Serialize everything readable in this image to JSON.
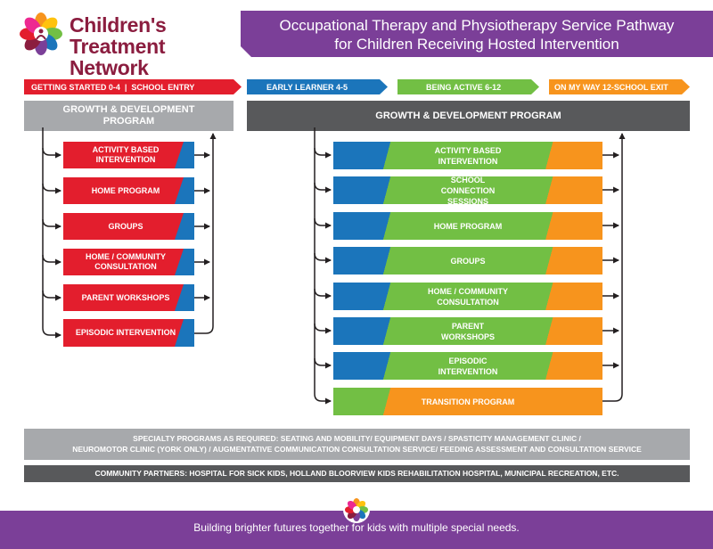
{
  "logo": {
    "line1": "Children's",
    "line2": "Treatment Network"
  },
  "title": {
    "line1": "Occupational Therapy and Physiotherapy Service Pathway",
    "line2": "for Children Receiving Hosted Intervention"
  },
  "age_tabs": {
    "first": "GETTING STARTED 0-4  |  SCHOOL ENTRY",
    "early": "EARLY LEARNER 4-5",
    "active": "BEING ACTIVE 6-12",
    "onmyway": "ON MY WAY 12-SCHOOL EXIT"
  },
  "left_header": "GROWTH & DEVELOPMENT PROGRAM",
  "right_header": "GROWTH & DEVELOPMENT PROGRAM",
  "left_programs": [
    "ACTIVITY BASED INTERVENTION",
    "HOME PROGRAM",
    "GROUPS",
    "HOME / COMMUNITY CONSULTATION",
    "PARENT WORKSHOPS",
    "EPISODIC INTERVENTION"
  ],
  "right_programs": [
    "ACTIVITY BASED INTERVENTION",
    "SCHOOL CONNECTION SESSIONS",
    "HOME PROGRAM",
    "GROUPS",
    "HOME / COMMUNITY CONSULTATION",
    "PARENT WORKSHOPS",
    "EPISODIC INTERVENTION",
    "TRANSITION PROGRAM"
  ],
  "specialty": {
    "line1": "SPECIALTY PROGRAMS AS REQUIRED:  SEATING AND MOBILITY/ EQUIPMENT DAYS / SPASTICITY MANAGEMENT CLINIC /",
    "line2": "NEUROMOTOR CLINIC (YORK ONLY) / AUGMENTATIVE COMMUNICATION CONSULTATION SERVICE/ FEEDING ASSESSMENT AND CONSULTATION SERVICE"
  },
  "partners": "COMMUNITY PARTNERS: HOSPITAL FOR SICK KIDS, HOLLAND BLOORVIEW KIDS REHABILITATION HOSPITAL, MUNICIPAL RECREATION, ETC.",
  "footer": "Building brighter futures together for kids with multiple special needs.",
  "colors": {
    "purple": "#7b3f98",
    "red": "#e31e2d",
    "blue": "#1b75bb",
    "green": "#72bf44",
    "orange": "#f7941d",
    "gray": "#a7a9ac",
    "dark_gray": "#58595b",
    "maroon": "#8b1d3f"
  }
}
